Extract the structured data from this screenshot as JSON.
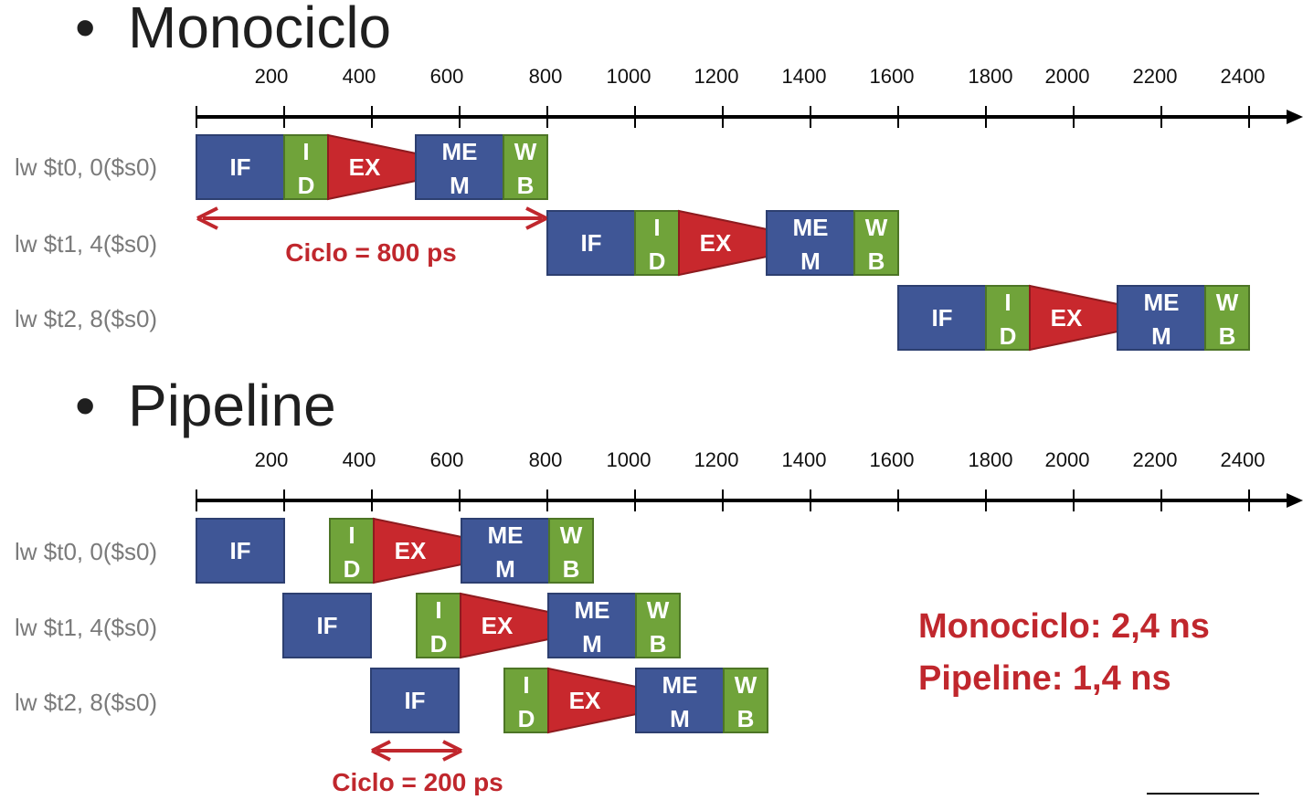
{
  "sections": [
    {
      "bullet": "•",
      "title": "Monociclo",
      "axis_ticks": [
        "200",
        "400",
        "600",
        "800",
        "1000",
        "1200",
        "1400",
        "1600",
        "1800",
        "2000",
        "2200",
        "2400"
      ],
      "instructions": [
        "lw $t0, 0($s0)",
        "lw $t1, 4($s0)",
        "lw $t2, 8($s0)"
      ],
      "cycle_label": "Ciclo = 800 ps"
    },
    {
      "bullet": "•",
      "title": "Pipeline",
      "axis_ticks": [
        "200",
        "400",
        "600",
        "800",
        "1000",
        "1200",
        "1400",
        "1600",
        "1800",
        "2000",
        "2200",
        "2400"
      ],
      "instructions": [
        "lw $t0, 0($s0)",
        "lw $t1, 4($s0)",
        "lw $t2, 8($s0)"
      ],
      "cycle_label": "Ciclo = 200 ps"
    }
  ],
  "stage_labels": {
    "if": "IF",
    "id": [
      "I",
      "D"
    ],
    "ex": "EX",
    "mem": [
      "ME",
      "M"
    ],
    "wb": [
      "W",
      "B"
    ]
  },
  "summary": {
    "monociclo": "Monociclo: 2,4 ns",
    "pipeline": "Pipeline: 1,4 ns"
  },
  "colors": {
    "if_mem": "#3f5696",
    "id_wb": "#70a33a",
    "ex": "#c8282d",
    "accent_red": "#c0272d"
  }
}
